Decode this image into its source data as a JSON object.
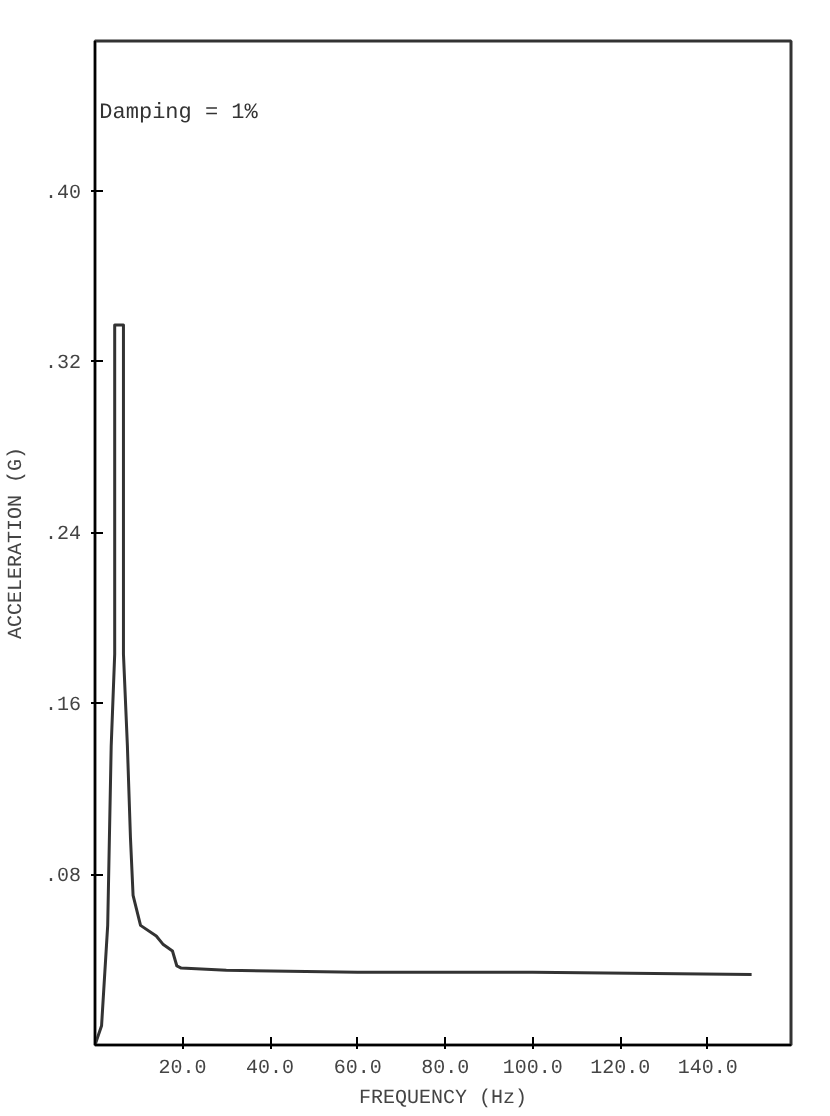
{
  "chart_data": {
    "type": "line",
    "xlabel": "FREQUENCY (Hz)",
    "ylabel": "ACCELERATION (G)",
    "annotations": [
      "Damping = 1%"
    ],
    "x": [
      0,
      1.5,
      2.9,
      3.7,
      4.5,
      4.5,
      6.5,
      6.5,
      7.4,
      8.1,
      8.7,
      10.4,
      14,
      15.6,
      17.7,
      18.7,
      19.7,
      30,
      60,
      100,
      150
    ],
    "series": [
      {
        "color": "#333333",
        "values": [
          0,
          0.009,
          0.056,
          0.14,
          0.183,
          0.337,
          0.337,
          0.183,
          0.14,
          0.097,
          0.07,
          0.056,
          0.051,
          0.047,
          0.044,
          0.037,
          0.036,
          0.035,
          0.034,
          0.034,
          0.033
        ]
      }
    ],
    "xlim": [
      0,
      159
    ],
    "ylim": [
      0,
      0.47
    ],
    "xticks": [
      {
        "value": 20,
        "label": "20.0"
      },
      {
        "value": 40,
        "label": "40.0"
      },
      {
        "value": 60,
        "label": "60.0"
      },
      {
        "value": 80,
        "label": "80.0"
      },
      {
        "value": 100,
        "label": "100.0"
      },
      {
        "value": 120,
        "label": "120.0"
      },
      {
        "value": 140,
        "label": "140.0"
      }
    ],
    "yticks": [
      {
        "value": 0.08,
        "label": ".08"
      },
      {
        "value": 0.16,
        "label": ".16"
      },
      {
        "value": 0.24,
        "label": ".24"
      },
      {
        "value": 0.32,
        "label": ".32"
      },
      {
        "value": 0.4,
        "label": ".40"
      }
    ],
    "grid": false,
    "marker": "none",
    "line_style": "solid"
  }
}
